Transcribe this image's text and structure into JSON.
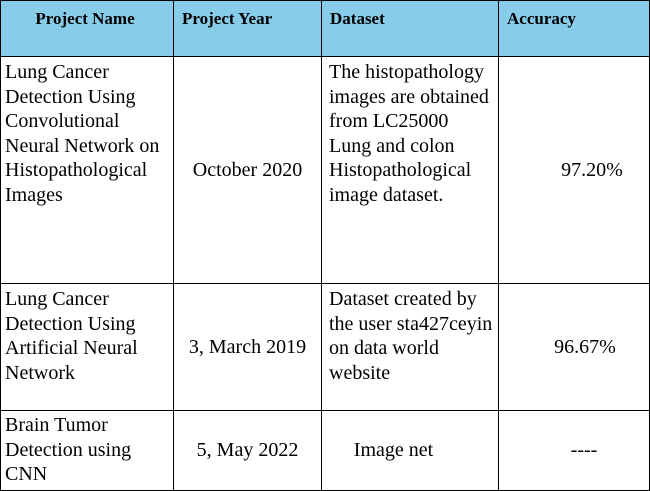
{
  "table": {
    "headers": [
      "Project Name",
      "Project Year",
      "Dataset",
      "Accuracy"
    ],
    "rows": [
      {
        "name": "Lung Cancer Detection Using Convolutional Neural Network on Histopathological Images",
        "year": "October 2020",
        "dataset": "The histopathology images are obtained from LC25000 Lung and colon Histopathological image dataset.",
        "accuracy": "97.20%"
      },
      {
        "name": "Lung Cancer Detection Using Artificial Neural Network",
        "year": "3, March 2019",
        "dataset": "Dataset created by the user sta427ceyin on data world website",
        "accuracy": "96.67%"
      },
      {
        "name": "Brain Tumor Detection using CNN",
        "year": "5, May 2022",
        "dataset": "Image net",
        "accuracy": "----"
      }
    ]
  },
  "colors": {
    "header_background": "#87cdea",
    "border": "#000000",
    "text": "#000000"
  }
}
